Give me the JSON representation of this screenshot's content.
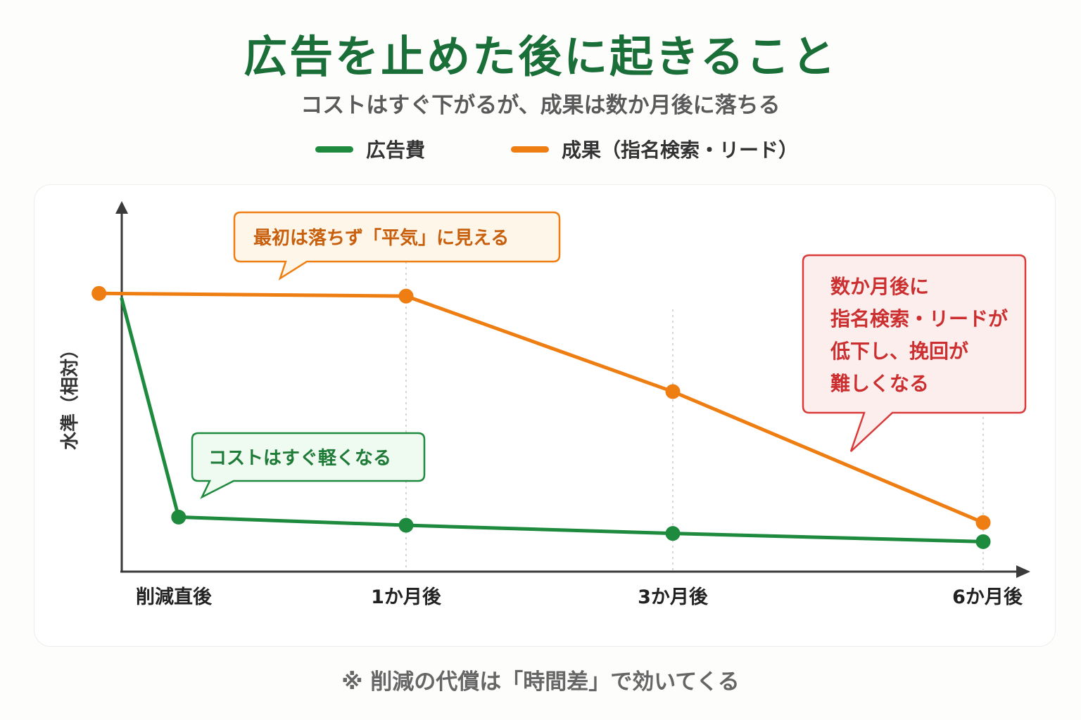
{
  "title": "広告を止めた後に起きること",
  "subtitle": "コストはすぐ下がるが、成果は数か月後に落ちる",
  "footnote": "※ 削減の代償は「時間差」で効いてくる",
  "colors": {
    "title": "#1a6e37",
    "ad_cost": "#1e8a3e",
    "results": "#ee7d12",
    "warning": "#d93a3a",
    "axis": "#3a3a3a"
  },
  "callouts": {
    "flat": "最初は落ちず「平気」に見える",
    "cost": "コストはすぐ軽くなる",
    "drop_lines": [
      "数か月後に",
      "指名検索・リードが",
      "低下し、挽回が",
      "難しくなる"
    ]
  },
  "chart_data": {
    "type": "line",
    "title": "広告を止めた後に起きること",
    "subtitle": "コストはすぐ下がるが、成果は数か月後に落ちる",
    "xlabel": "",
    "ylabel": "水準（相対）",
    "x_tick_labels": [
      "削減直後",
      "1か月後",
      "3か月後",
      "6か月後"
    ],
    "x_tick_months": [
      0,
      1,
      3,
      6
    ],
    "legend_position": "top",
    "grid": "vertical dotted lines at 1か月後, 3か月後, 6か月後",
    "ylim": [
      0,
      100
    ],
    "series": [
      {
        "name": "広告費",
        "color": "#1e8a3e",
        "x_months": [
          0,
          0.2,
          1,
          3,
          6
        ],
        "y": [
          100,
          20,
          17,
          14,
          11
        ],
        "marker_start_index": 1
      },
      {
        "name": "成果（指名検索・リード）",
        "color": "#ee7d12",
        "x_months": [
          -0.08,
          1,
          3,
          6
        ],
        "y": [
          102,
          101,
          66,
          18
        ],
        "marker_start_index": 0
      }
    ]
  }
}
